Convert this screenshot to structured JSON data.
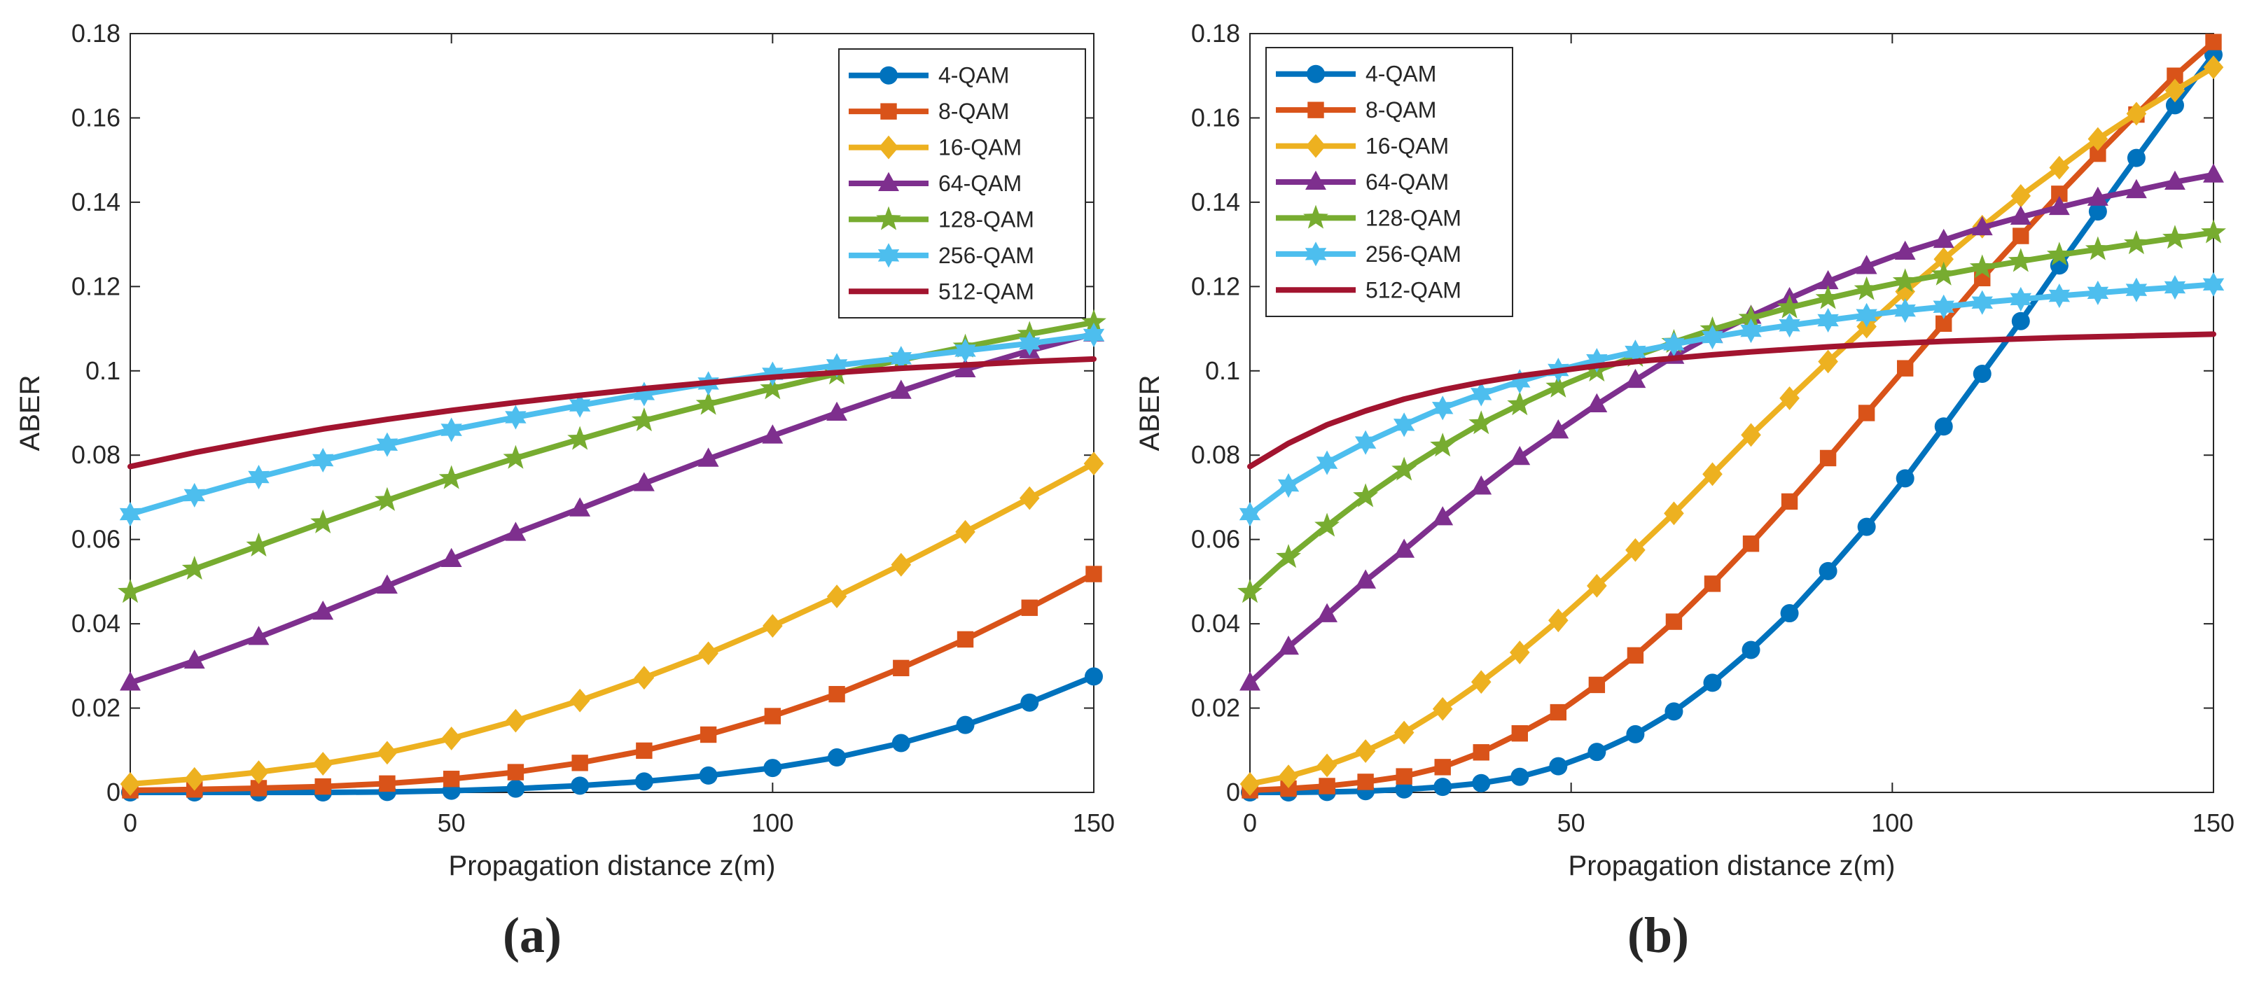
{
  "figure": {
    "panels": [
      {
        "label_open": "(",
        "label_letter": "a",
        "label_close": ")"
      },
      {
        "label_open": "(",
        "label_letter": "b",
        "label_close": ")"
      }
    ]
  },
  "chart_data": [
    {
      "type": "line",
      "panel": "a",
      "title": "",
      "xlabel": "Propagation distance z(m)",
      "ylabel": "ABER",
      "xlim": [
        0,
        150
      ],
      "ylim": [
        0,
        0.18
      ],
      "xticks": [
        0,
        50,
        100,
        150
      ],
      "xtick_labels": [
        "0",
        "50",
        "100",
        "150"
      ],
      "yticks": [
        0,
        0.02,
        0.04,
        0.06,
        0.08,
        0.1,
        0.12,
        0.14,
        0.16,
        0.18
      ],
      "ytick_labels": [
        "0",
        "0.02",
        "0.04",
        "0.06",
        "0.08",
        "0.1",
        "0.12",
        "0.14",
        "0.16",
        "0.18"
      ],
      "grid": false,
      "legend_position": "top-right",
      "x": [
        0,
        10,
        20,
        30,
        40,
        50,
        60,
        70,
        80,
        90,
        100,
        110,
        120,
        130,
        140,
        150
      ],
      "series": [
        {
          "name": "4-QAM",
          "color": "#0072BD",
          "marker": "circle",
          "values": [
            0.0,
            0.0,
            0.0,
            0.0,
            0.0001,
            0.0004,
            0.0009,
            0.0016,
            0.0026,
            0.004,
            0.0058,
            0.0083,
            0.0117,
            0.016,
            0.0213,
            0.0275
          ]
        },
        {
          "name": "8-QAM",
          "color": "#D95319",
          "marker": "square",
          "values": [
            0.0005,
            0.0007,
            0.001,
            0.0014,
            0.0021,
            0.0032,
            0.0048,
            0.007,
            0.0099,
            0.0137,
            0.0181,
            0.0233,
            0.0295,
            0.0363,
            0.0438,
            0.0518
          ]
        },
        {
          "name": "16-QAM",
          "color": "#EDB120",
          "marker": "diamond",
          "values": [
            0.002,
            0.0032,
            0.0048,
            0.0068,
            0.0094,
            0.0128,
            0.017,
            0.0218,
            0.0272,
            0.033,
            0.0395,
            0.0465,
            0.054,
            0.0618,
            0.0698,
            0.078
          ]
        },
        {
          "name": "64-QAM",
          "color": "#7E2F8E",
          "marker": "triangle",
          "values": [
            0.026,
            0.0312,
            0.0368,
            0.0428,
            0.049,
            0.0553,
            0.0615,
            0.0673,
            0.0733,
            0.0791,
            0.0846,
            0.09,
            0.0952,
            0.1003,
            0.1048,
            0.1088
          ]
        },
        {
          "name": "128-QAM",
          "color": "#77AC30",
          "marker": "star",
          "values": [
            0.0475,
            0.053,
            0.0585,
            0.064,
            0.0693,
            0.0745,
            0.0793,
            0.0838,
            0.0882,
            0.0921,
            0.0958,
            0.0993,
            0.1026,
            0.1057,
            0.1087,
            0.1115
          ]
        },
        {
          "name": "256-QAM",
          "color": "#4DBEEE",
          "marker": "hexagram",
          "values": [
            0.066,
            0.0705,
            0.0748,
            0.0788,
            0.0825,
            0.086,
            0.089,
            0.0918,
            0.0945,
            0.097,
            0.0993,
            0.1013,
            0.103,
            0.1048,
            0.1065,
            0.1085
          ]
        },
        {
          "name": "512-QAM",
          "color": "#A2142F",
          "marker": "none",
          "values": [
            0.0773,
            0.0806,
            0.0835,
            0.0862,
            0.0885,
            0.0906,
            0.0925,
            0.0942,
            0.0958,
            0.0972,
            0.0985,
            0.0996,
            0.1006,
            0.1014,
            0.1022,
            0.1028
          ]
        }
      ]
    },
    {
      "type": "line",
      "panel": "b",
      "title": "",
      "xlabel": "Propagation distance z(m)",
      "ylabel": "ABER",
      "xlim": [
        0,
        150
      ],
      "ylim": [
        0,
        0.18
      ],
      "xticks": [
        0,
        50,
        100,
        150
      ],
      "xtick_labels": [
        "0",
        "50",
        "100",
        "150"
      ],
      "yticks": [
        0,
        0.02,
        0.04,
        0.06,
        0.08,
        0.1,
        0.12,
        0.14,
        0.16,
        0.18
      ],
      "ytick_labels": [
        "0",
        "0.02",
        "0.04",
        "0.06",
        "0.08",
        "0.1",
        "0.12",
        "0.14",
        "0.16",
        "0.18"
      ],
      "grid": false,
      "legend_position": "top-left",
      "x": [
        0,
        6,
        12,
        18,
        24,
        30,
        36,
        42,
        48,
        54,
        60,
        66,
        72,
        78,
        84,
        90,
        96,
        102,
        108,
        114,
        120,
        126,
        132,
        138,
        144,
        150
      ],
      "series": [
        {
          "name": "4-QAM",
          "color": "#0072BD",
          "marker": "circle",
          "values": [
            0.0,
            0.0,
            0.0001,
            0.0003,
            0.0007,
            0.0013,
            0.0022,
            0.0037,
            0.0062,
            0.0096,
            0.0138,
            0.0192,
            0.026,
            0.0338,
            0.0425,
            0.0525,
            0.063,
            0.0745,
            0.0868,
            0.0993,
            0.1118,
            0.125,
            0.1378,
            0.1505,
            0.163,
            0.175
          ]
        },
        {
          "name": "8-QAM",
          "color": "#D95319",
          "marker": "square",
          "values": [
            0.0005,
            0.0009,
            0.0015,
            0.0025,
            0.0038,
            0.006,
            0.0095,
            0.014,
            0.019,
            0.0255,
            0.0325,
            0.0405,
            0.0495,
            0.059,
            0.069,
            0.0793,
            0.09,
            0.1006,
            0.1112,
            0.122,
            0.132,
            0.142,
            0.1515,
            0.1608,
            0.17,
            0.178
          ]
        },
        {
          "name": "16-QAM",
          "color": "#EDB120",
          "marker": "diamond",
          "values": [
            0.002,
            0.0038,
            0.0064,
            0.0098,
            0.0142,
            0.0198,
            0.0262,
            0.0332,
            0.0408,
            0.049,
            0.0575,
            0.0662,
            0.0755,
            0.0848,
            0.0935,
            0.1022,
            0.1105,
            0.1188,
            0.1265,
            0.1342,
            0.1415,
            0.1482,
            0.155,
            0.161,
            0.1665,
            0.172
          ]
        },
        {
          "name": "64-QAM",
          "color": "#7E2F8E",
          "marker": "triangle",
          "values": [
            0.026,
            0.0345,
            0.0422,
            0.0502,
            0.0575,
            0.0652,
            0.0725,
            0.0795,
            0.0858,
            0.092,
            0.0978,
            0.1035,
            0.1085,
            0.113,
            0.1172,
            0.1212,
            0.1248,
            0.1282,
            0.131,
            0.134,
            0.1365,
            0.1388,
            0.141,
            0.1428,
            0.1448,
            0.1465
          ]
        },
        {
          "name": "128-QAM",
          "color": "#77AC30",
          "marker": "star",
          "values": [
            0.0475,
            0.0558,
            0.0632,
            0.0702,
            0.0765,
            0.0822,
            0.0875,
            0.092,
            0.0962,
            0.1,
            0.1035,
            0.1068,
            0.1098,
            0.1125,
            0.115,
            0.1172,
            0.1193,
            0.1212,
            0.1228,
            0.1245,
            0.126,
            0.1275,
            0.1288,
            0.1302,
            0.1315,
            0.1328
          ]
        },
        {
          "name": "256-QAM",
          "color": "#4DBEEE",
          "marker": "hexagram",
          "values": [
            0.066,
            0.0728,
            0.0782,
            0.083,
            0.0872,
            0.0912,
            0.0945,
            0.0975,
            0.1002,
            0.1025,
            0.1045,
            0.1063,
            0.108,
            0.1095,
            0.1108,
            0.112,
            0.1132,
            0.1143,
            0.1152,
            0.1162,
            0.117,
            0.1178,
            0.1185,
            0.1192,
            0.1198,
            0.1205
          ]
        },
        {
          "name": "512-QAM",
          "color": "#A2142F",
          "marker": "none",
          "values": [
            0.0773,
            0.0828,
            0.0872,
            0.0905,
            0.0933,
            0.0955,
            0.0973,
            0.0988,
            0.1,
            0.1012,
            0.1022,
            0.103,
            0.1038,
            0.1045,
            0.1051,
            0.1057,
            0.1062,
            0.1066,
            0.107,
            0.1073,
            0.1076,
            0.1079,
            0.1081,
            0.1083,
            0.1085,
            0.1087
          ]
        }
      ]
    }
  ]
}
